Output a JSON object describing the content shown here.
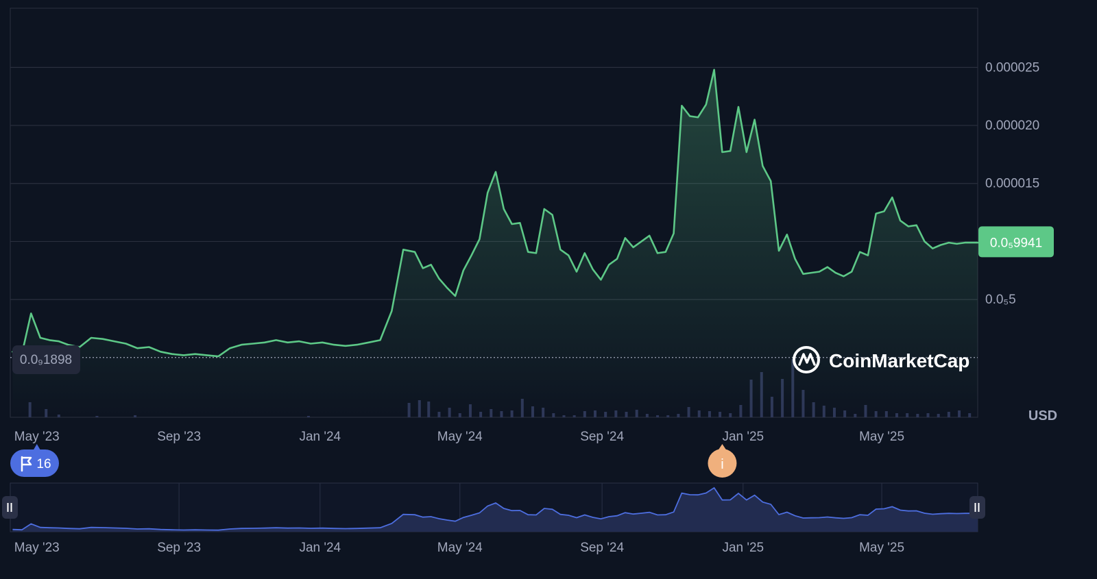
{
  "chart_data": {
    "type": "area",
    "currency": "USD",
    "x_labels": [
      "May '23",
      "Sep '23",
      "Jan '24",
      "May '24",
      "Sep '24",
      "Jan '25",
      "May '25"
    ],
    "y_ticks": [
      {
        "value": 5e-06,
        "label": "0.0₅5"
      },
      {
        "value": 1e-05,
        "label": ""
      },
      {
        "value": 1.5e-05,
        "label": "0.000015"
      },
      {
        "value": 2e-05,
        "label": "0.000020"
      },
      {
        "value": 2.5e-05,
        "label": "0.000025"
      }
    ],
    "ylim": [
      -5.15e-06,
      3.01e-05
    ],
    "xlim": [
      "2023-04-08",
      "2025-07-23"
    ],
    "reference_price": {
      "value": 1.898e-09,
      "label": "0.0₉1898"
    },
    "current_price": {
      "value": 9.941e-06,
      "label": "0.0₅9941"
    },
    "markers": [
      {
        "kind": "flag",
        "label": "16",
        "date": "2023-05-01"
      },
      {
        "kind": "info",
        "label": "i",
        "date": "2024-12-14"
      }
    ],
    "colors": {
      "line": "#5dc887",
      "current_badge_bg": "#5dc887",
      "volume_bar": "#2e3758",
      "navigator_line": "#4d6ee0",
      "navigator_fill": "#222c50",
      "flag_badge_bg": "#4d6ee0",
      "info_badge_bg": "#f0b07d",
      "grid": "#2a2f3e"
    },
    "series": [
      {
        "x": [
          "2023-04-10",
          "2023-04-18",
          "2023-04-26",
          "2023-05-04",
          "2023-05-12",
          "2023-05-20",
          "2023-05-28",
          "2023-06-07",
          "2023-06-17",
          "2023-06-27",
          "2023-07-07",
          "2023-07-17",
          "2023-07-27",
          "2023-08-06",
          "2023-08-16",
          "2023-08-26",
          "2023-09-05",
          "2023-09-15",
          "2023-09-25",
          "2023-10-05",
          "2023-10-15",
          "2023-10-25",
          "2023-11-04",
          "2023-11-14",
          "2023-11-24",
          "2023-12-04",
          "2023-12-14",
          "2023-12-24",
          "2024-01-03",
          "2024-01-13",
          "2024-01-23",
          "2024-02-02",
          "2024-02-12",
          "2024-02-22",
          "2024-03-03",
          "2024-03-13",
          "2024-03-23",
          "2024-03-30",
          "2024-04-06",
          "2024-04-13",
          "2024-04-20",
          "2024-04-27",
          "2024-05-04",
          "2024-05-11",
          "2024-05-18",
          "2024-05-25",
          "2024-06-01",
          "2024-06-08",
          "2024-06-15",
          "2024-06-22",
          "2024-06-29",
          "2024-07-06",
          "2024-07-13",
          "2024-07-20",
          "2024-07-27",
          "2024-08-03",
          "2024-08-10",
          "2024-08-17",
          "2024-08-24",
          "2024-08-31",
          "2024-09-07",
          "2024-09-14",
          "2024-09-21",
          "2024-09-28",
          "2024-10-05",
          "2024-10-12",
          "2024-10-19",
          "2024-10-26",
          "2024-11-02",
          "2024-11-09",
          "2024-11-16",
          "2024-11-23",
          "2024-11-30",
          "2024-12-07",
          "2024-12-14",
          "2024-12-21",
          "2024-12-28",
          "2025-01-04",
          "2025-01-11",
          "2025-01-18",
          "2025-01-25",
          "2025-02-01",
          "2025-02-08",
          "2025-02-15",
          "2025-02-22",
          "2025-03-01",
          "2025-03-08",
          "2025-03-15",
          "2025-03-22",
          "2025-03-29",
          "2025-04-05",
          "2025-04-12",
          "2025-04-19",
          "2025-04-26",
          "2025-05-03",
          "2025-05-10",
          "2025-05-17",
          "2025-05-24",
          "2025-05-31",
          "2025-06-07",
          "2025-06-14",
          "2025-06-21",
          "2025-06-28",
          "2025-07-05",
          "2025-07-12",
          "2025-07-19",
          "2025-07-23"
        ],
        "values": [
          5e-07,
          3e-07,
          3.8e-06,
          1.7e-06,
          1.5e-06,
          1.4e-06,
          1.1e-06,
          9e-07,
          1.7e-06,
          1.6e-06,
          1.4e-06,
          1.2e-06,
          8e-07,
          9e-07,
          5e-07,
          3e-07,
          2e-07,
          3e-07,
          2e-07,
          1e-07,
          8e-07,
          1.1e-06,
          1.2e-06,
          1.3e-06,
          1.5e-06,
          1.3e-06,
          1.4e-06,
          1.2e-06,
          1.3e-06,
          1.1e-06,
          1e-06,
          1.1e-06,
          1.3e-06,
          1.5e-06,
          4e-06,
          9.3e-06,
          9.1e-06,
          7.7e-06,
          8e-06,
          6.8e-06,
          6e-06,
          5.3e-06,
          7.5e-06,
          8.8e-06,
          1.02e-05,
          1.42e-05,
          1.6e-05,
          1.28e-05,
          1.15e-05,
          1.16e-05,
          9.1e-06,
          9e-06,
          1.28e-05,
          1.23e-05,
          9.3e-06,
          8.8e-06,
          7.4e-06,
          9e-06,
          7.6e-06,
          6.7e-06,
          8e-06,
          8.5e-06,
          1.03e-05,
          9.5e-06,
          1e-05,
          1.05e-05,
          9e-06,
          9.1e-06,
          1.07e-05,
          2.17e-05,
          2.08e-05,
          2.07e-05,
          2.18e-05,
          2.48e-05,
          1.77e-05,
          1.78e-05,
          2.16e-05,
          1.77e-05,
          2.05e-05,
          1.65e-05,
          1.52e-05,
          9.2e-06,
          1.06e-05,
          8.5e-06,
          7.2e-06,
          7.3e-06,
          7.4e-06,
          7.8e-06,
          7.3e-06,
          7e-06,
          7.4e-06,
          9.1e-06,
          8.8e-06,
          1.24e-05,
          1.26e-05,
          1.38e-05,
          1.18e-05,
          1.13e-05,
          1.14e-05,
          1e-05,
          9.4e-06,
          9.7e-06,
          9.9e-06,
          9.8e-06,
          9.9e-06,
          9.9e-06,
          9.9e-06
        ]
      }
    ],
    "volume": {
      "x": [
        "2023-04-25",
        "2023-05-09",
        "2023-05-20",
        "2023-06-22",
        "2023-07-25",
        "2023-12-22",
        "2024-03-18",
        "2024-03-27",
        "2024-04-04",
        "2024-04-13",
        "2024-04-22",
        "2024-05-01",
        "2024-05-10",
        "2024-05-19",
        "2024-05-28",
        "2024-06-06",
        "2024-06-15",
        "2024-06-24",
        "2024-07-03",
        "2024-07-12",
        "2024-07-21",
        "2024-07-30",
        "2024-08-08",
        "2024-08-17",
        "2024-08-26",
        "2024-09-04",
        "2024-09-13",
        "2024-09-22",
        "2024-10-01",
        "2024-10-10",
        "2024-10-19",
        "2024-10-28",
        "2024-11-06",
        "2024-11-15",
        "2024-11-24",
        "2024-12-03",
        "2024-12-12",
        "2024-12-21",
        "2024-12-30",
        "2025-01-08",
        "2025-01-17",
        "2025-01-26",
        "2025-02-04",
        "2025-02-13",
        "2025-02-22",
        "2025-03-03",
        "2025-03-12",
        "2025-03-21",
        "2025-03-30",
        "2025-04-08",
        "2025-04-17",
        "2025-04-26",
        "2025-05-05",
        "2025-05-14",
        "2025-05-23",
        "2025-06-01",
        "2025-06-10",
        "2025-06-19",
        "2025-06-28",
        "2025-07-07",
        "2025-07-16"
      ],
      "values": [
        22,
        12,
        4,
        2,
        3,
        2,
        21,
        25,
        23,
        8,
        14,
        6,
        19,
        8,
        12,
        9,
        10,
        27,
        16,
        14,
        6,
        3,
        3,
        9,
        10,
        8,
        10,
        8,
        11,
        5,
        3,
        3,
        5,
        15,
        10,
        9,
        8,
        6,
        18,
        55,
        66,
        30,
        56,
        85,
        40,
        22,
        17,
        14,
        10,
        5,
        18,
        9,
        9,
        6,
        6,
        5,
        6,
        5,
        8,
        10,
        6
      ]
    }
  }
}
